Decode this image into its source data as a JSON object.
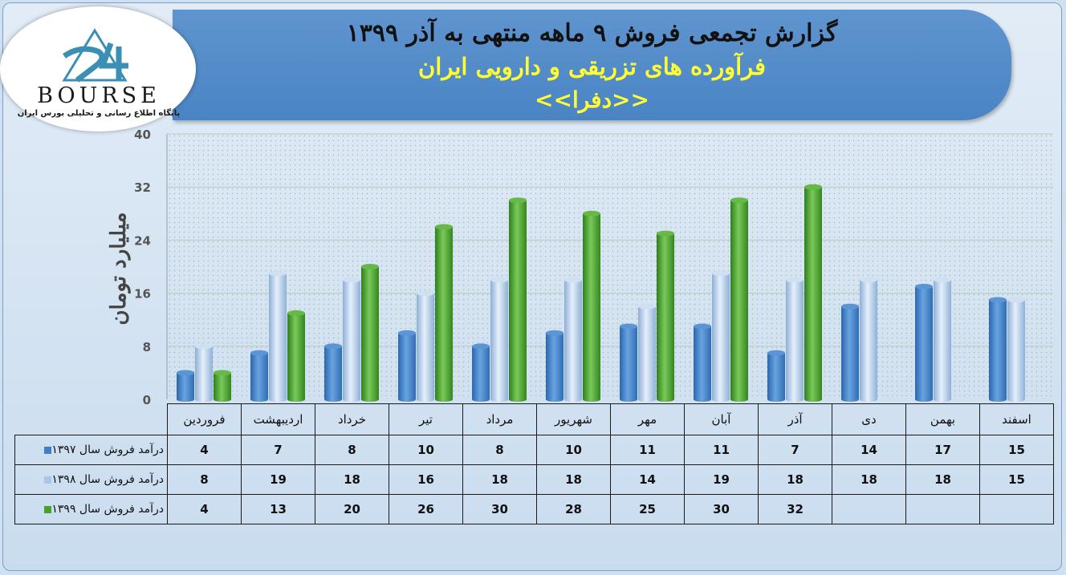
{
  "header": {
    "title_line1": "گزارش تجمعی فروش ۹ ماهه منتهی به آذر ۱۳۹۹",
    "title_line2": "فرآورده های تزریقی و دارویی ایران",
    "title_line3": "<<دفرا>>"
  },
  "logo": {
    "word": "BOURSE",
    "number": "24",
    "subtitle": "پایگاه اطلاع رسانی و تحلیلی بورس ایران"
  },
  "chart_data": {
    "type": "bar",
    "ylabel": "میلیارد تومان",
    "ylim": [
      0,
      40
    ],
    "yticks": [
      0,
      8,
      16,
      24,
      32,
      40
    ],
    "grid": true,
    "categories": [
      "فروردین",
      "اردیبهشت",
      "خرداد",
      "تیر",
      "مرداد",
      "شهریور",
      "مهر",
      "آبان",
      "آذر",
      "دی",
      "بهمن",
      "اسفند"
    ],
    "series": [
      {
        "name": "درآمد فروش سال ۱۳۹۷",
        "color": "#3f7fc6",
        "values": [
          4,
          7,
          8,
          10,
          8,
          10,
          11,
          11,
          7,
          14,
          17,
          15
        ]
      },
      {
        "name": "درآمد فروش سال ۱۳۹۸",
        "color": "#a9c6e8",
        "values": [
          8,
          19,
          18,
          16,
          18,
          18,
          14,
          19,
          18,
          18,
          18,
          15
        ]
      },
      {
        "name": "درآمد فروش سال ۱۳۹۹",
        "color": "#4aa02e",
        "values": [
          4,
          13,
          20,
          26,
          30,
          28,
          25,
          30,
          32,
          null,
          null,
          null
        ]
      }
    ]
  }
}
